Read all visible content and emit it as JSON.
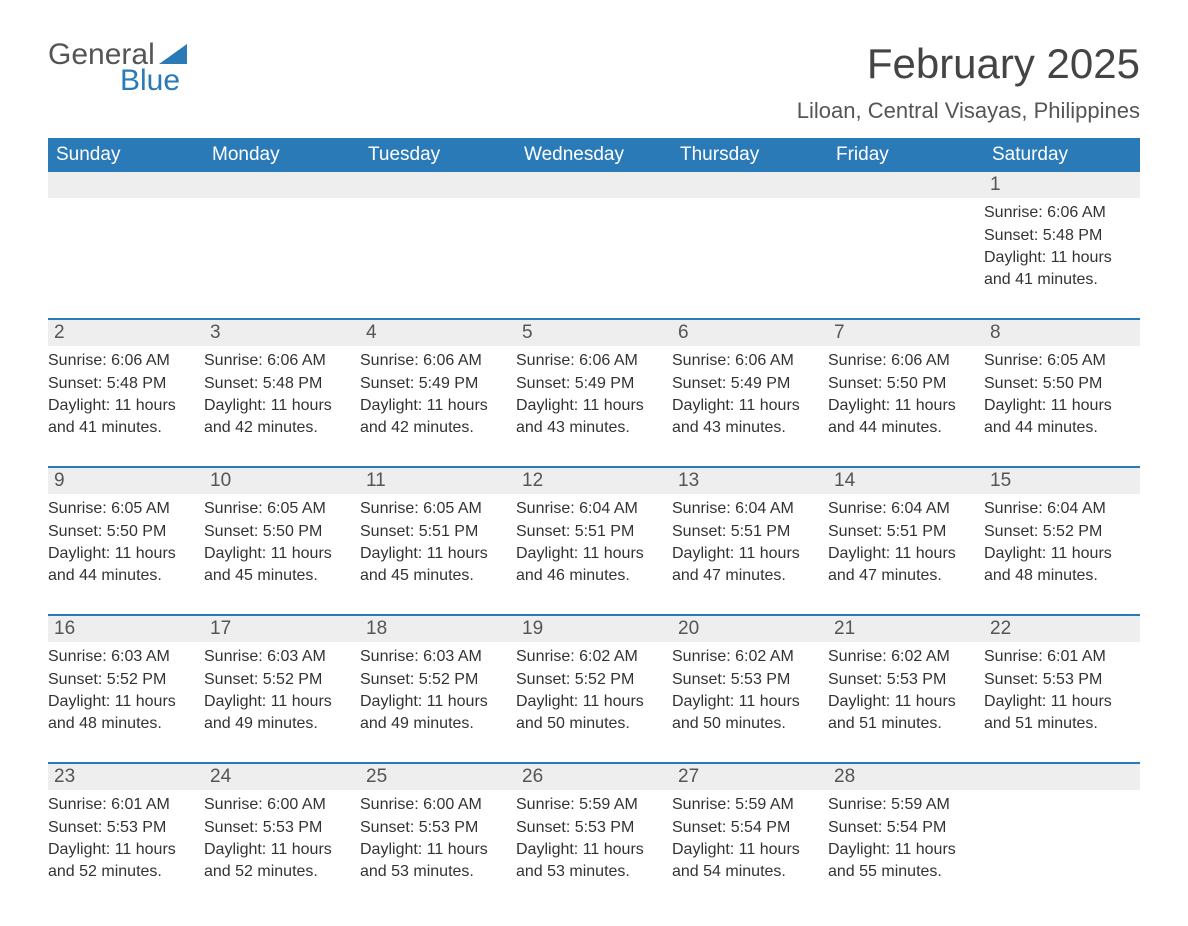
{
  "logo": {
    "text1": "General",
    "text2": "Blue",
    "triangle_color": "#2a7ab8"
  },
  "title": "February 2025",
  "location": "Liloan, Central Visayas, Philippines",
  "colors": {
    "header_bg": "#2a7ab8",
    "header_text": "#ffffff",
    "daynum_bg": "#eeeeee",
    "rule": "#2a7ab8",
    "body_text": "#333333"
  },
  "days_of_week": [
    "Sunday",
    "Monday",
    "Tuesday",
    "Wednesday",
    "Thursday",
    "Friday",
    "Saturday"
  ],
  "weeks": [
    [
      {
        "n": "",
        "sunrise": "",
        "sunset": "",
        "daylight": ""
      },
      {
        "n": "",
        "sunrise": "",
        "sunset": "",
        "daylight": ""
      },
      {
        "n": "",
        "sunrise": "",
        "sunset": "",
        "daylight": ""
      },
      {
        "n": "",
        "sunrise": "",
        "sunset": "",
        "daylight": ""
      },
      {
        "n": "",
        "sunrise": "",
        "sunset": "",
        "daylight": ""
      },
      {
        "n": "",
        "sunrise": "",
        "sunset": "",
        "daylight": ""
      },
      {
        "n": "1",
        "sunrise": "Sunrise: 6:06 AM",
        "sunset": "Sunset: 5:48 PM",
        "daylight": "Daylight: 11 hours and 41 minutes."
      }
    ],
    [
      {
        "n": "2",
        "sunrise": "Sunrise: 6:06 AM",
        "sunset": "Sunset: 5:48 PM",
        "daylight": "Daylight: 11 hours and 41 minutes."
      },
      {
        "n": "3",
        "sunrise": "Sunrise: 6:06 AM",
        "sunset": "Sunset: 5:48 PM",
        "daylight": "Daylight: 11 hours and 42 minutes."
      },
      {
        "n": "4",
        "sunrise": "Sunrise: 6:06 AM",
        "sunset": "Sunset: 5:49 PM",
        "daylight": "Daylight: 11 hours and 42 minutes."
      },
      {
        "n": "5",
        "sunrise": "Sunrise: 6:06 AM",
        "sunset": "Sunset: 5:49 PM",
        "daylight": "Daylight: 11 hours and 43 minutes."
      },
      {
        "n": "6",
        "sunrise": "Sunrise: 6:06 AM",
        "sunset": "Sunset: 5:49 PM",
        "daylight": "Daylight: 11 hours and 43 minutes."
      },
      {
        "n": "7",
        "sunrise": "Sunrise: 6:06 AM",
        "sunset": "Sunset: 5:50 PM",
        "daylight": "Daylight: 11 hours and 44 minutes."
      },
      {
        "n": "8",
        "sunrise": "Sunrise: 6:05 AM",
        "sunset": "Sunset: 5:50 PM",
        "daylight": "Daylight: 11 hours and 44 minutes."
      }
    ],
    [
      {
        "n": "9",
        "sunrise": "Sunrise: 6:05 AM",
        "sunset": "Sunset: 5:50 PM",
        "daylight": "Daylight: 11 hours and 44 minutes."
      },
      {
        "n": "10",
        "sunrise": "Sunrise: 6:05 AM",
        "sunset": "Sunset: 5:50 PM",
        "daylight": "Daylight: 11 hours and 45 minutes."
      },
      {
        "n": "11",
        "sunrise": "Sunrise: 6:05 AM",
        "sunset": "Sunset: 5:51 PM",
        "daylight": "Daylight: 11 hours and 45 minutes."
      },
      {
        "n": "12",
        "sunrise": "Sunrise: 6:04 AM",
        "sunset": "Sunset: 5:51 PM",
        "daylight": "Daylight: 11 hours and 46 minutes."
      },
      {
        "n": "13",
        "sunrise": "Sunrise: 6:04 AM",
        "sunset": "Sunset: 5:51 PM",
        "daylight": "Daylight: 11 hours and 47 minutes."
      },
      {
        "n": "14",
        "sunrise": "Sunrise: 6:04 AM",
        "sunset": "Sunset: 5:51 PM",
        "daylight": "Daylight: 11 hours and 47 minutes."
      },
      {
        "n": "15",
        "sunrise": "Sunrise: 6:04 AM",
        "sunset": "Sunset: 5:52 PM",
        "daylight": "Daylight: 11 hours and 48 minutes."
      }
    ],
    [
      {
        "n": "16",
        "sunrise": "Sunrise: 6:03 AM",
        "sunset": "Sunset: 5:52 PM",
        "daylight": "Daylight: 11 hours and 48 minutes."
      },
      {
        "n": "17",
        "sunrise": "Sunrise: 6:03 AM",
        "sunset": "Sunset: 5:52 PM",
        "daylight": "Daylight: 11 hours and 49 minutes."
      },
      {
        "n": "18",
        "sunrise": "Sunrise: 6:03 AM",
        "sunset": "Sunset: 5:52 PM",
        "daylight": "Daylight: 11 hours and 49 minutes."
      },
      {
        "n": "19",
        "sunrise": "Sunrise: 6:02 AM",
        "sunset": "Sunset: 5:52 PM",
        "daylight": "Daylight: 11 hours and 50 minutes."
      },
      {
        "n": "20",
        "sunrise": "Sunrise: 6:02 AM",
        "sunset": "Sunset: 5:53 PM",
        "daylight": "Daylight: 11 hours and 50 minutes."
      },
      {
        "n": "21",
        "sunrise": "Sunrise: 6:02 AM",
        "sunset": "Sunset: 5:53 PM",
        "daylight": "Daylight: 11 hours and 51 minutes."
      },
      {
        "n": "22",
        "sunrise": "Sunrise: 6:01 AM",
        "sunset": "Sunset: 5:53 PM",
        "daylight": "Daylight: 11 hours and 51 minutes."
      }
    ],
    [
      {
        "n": "23",
        "sunrise": "Sunrise: 6:01 AM",
        "sunset": "Sunset: 5:53 PM",
        "daylight": "Daylight: 11 hours and 52 minutes."
      },
      {
        "n": "24",
        "sunrise": "Sunrise: 6:00 AM",
        "sunset": "Sunset: 5:53 PM",
        "daylight": "Daylight: 11 hours and 52 minutes."
      },
      {
        "n": "25",
        "sunrise": "Sunrise: 6:00 AM",
        "sunset": "Sunset: 5:53 PM",
        "daylight": "Daylight: 11 hours and 53 minutes."
      },
      {
        "n": "26",
        "sunrise": "Sunrise: 5:59 AM",
        "sunset": "Sunset: 5:53 PM",
        "daylight": "Daylight: 11 hours and 53 minutes."
      },
      {
        "n": "27",
        "sunrise": "Sunrise: 5:59 AM",
        "sunset": "Sunset: 5:54 PM",
        "daylight": "Daylight: 11 hours and 54 minutes."
      },
      {
        "n": "28",
        "sunrise": "Sunrise: 5:59 AM",
        "sunset": "Sunset: 5:54 PM",
        "daylight": "Daylight: 11 hours and 55 minutes."
      },
      {
        "n": "",
        "sunrise": "",
        "sunset": "",
        "daylight": ""
      }
    ]
  ]
}
